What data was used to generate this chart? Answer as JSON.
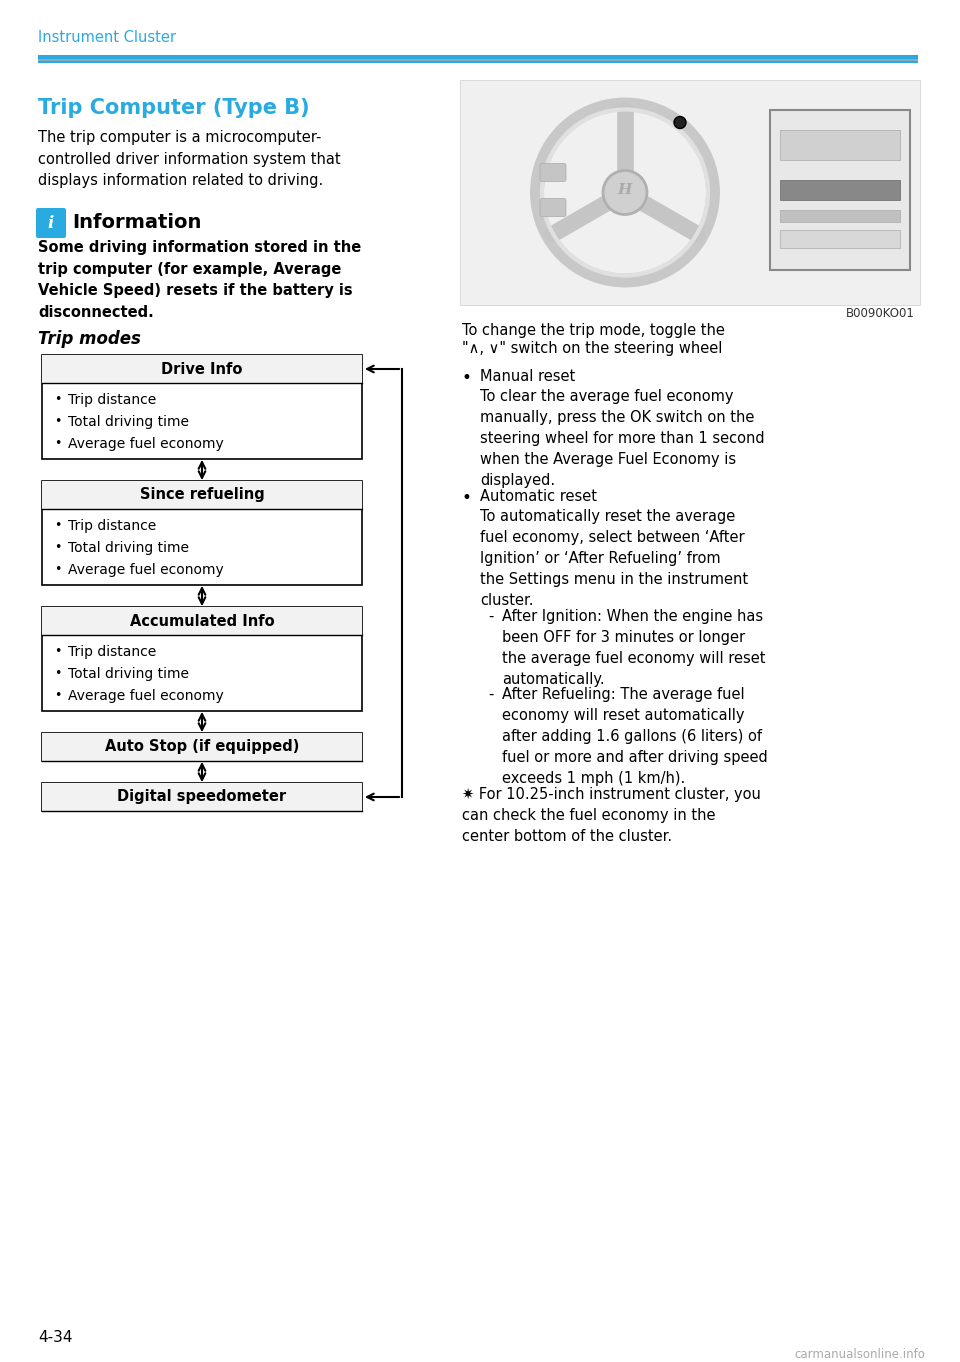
{
  "page_header": "Instrument Cluster",
  "page_number": "4-34",
  "header_bar_color": "#29ABE2",
  "header_line_color": "#8aacb8",
  "section_title": "Trip Computer (Type B)",
  "section_title_color": "#29ABE2",
  "intro_text": "The trip computer is a microcomputer-\ncontrolled driver information system that\ndisplays information related to driving.",
  "info_box_color": "#29ABE2",
  "info_title": "Information",
  "info_body": "Some driving information stored in the\ntrip computer (for example, Average\nVehicle Speed) resets if the battery is\ndisconnected.",
  "trip_modes_title": "Trip modes",
  "boxes": [
    {
      "header": "Drive Info",
      "items": [
        "Trip distance",
        "Total driving time",
        "Average fuel economy"
      ],
      "has_right_arrow": true
    },
    {
      "header": "Since refueling",
      "items": [
        "Trip distance",
        "Total driving time",
        "Average fuel economy"
      ],
      "has_right_arrow": false
    },
    {
      "header": "Accumulated Info",
      "items": [
        "Trip distance",
        "Total driving time",
        "Average fuel economy"
      ],
      "has_right_arrow": false
    },
    {
      "header": "Auto Stop (if equipped)",
      "items": [],
      "has_right_arrow": false
    },
    {
      "header": "Digital speedometer",
      "items": [],
      "has_right_arrow": true
    }
  ],
  "right_toggle_line1": "To change the trip mode, toggle the",
  "right_toggle_line2": "\"∧, ∨\" switch on the steering wheel",
  "right_bullets": [
    {
      "title": "Manual reset",
      "body": "To clear the average fuel economy\nmanually, press the OK switch on the\nsteering wheel for more than 1 second\nwhen the Average Fuel Economy is\ndisplayed."
    },
    {
      "title": "Automatic reset",
      "body": "To automatically reset the average\nfuel economy, select between ‘After\nIgnition’ or ‘After Refueling’ from\nthe Settings menu in the instrument\ncluster.",
      "sub_bullets": [
        "After Ignition: When the engine has\nbeen OFF for 3 minutes or longer\nthe average fuel economy will reset\nautomatically.",
        "After Refueling: The average fuel\neconomy will reset automatically\nafter adding 1.6 gallons (6 liters) of\nfuel or more and after driving speed\nexceeds 1 mph (1 km/h)."
      ]
    }
  ],
  "asterisk_note": "For 10.25-inch instrument cluster, you\ncan check the fuel economy in the\ncenter bottom of the cluster.",
  "watermark": "carmanualsonline.info",
  "image_label": "B0090KO01",
  "bg_color": "#ffffff",
  "text_color": "#000000"
}
